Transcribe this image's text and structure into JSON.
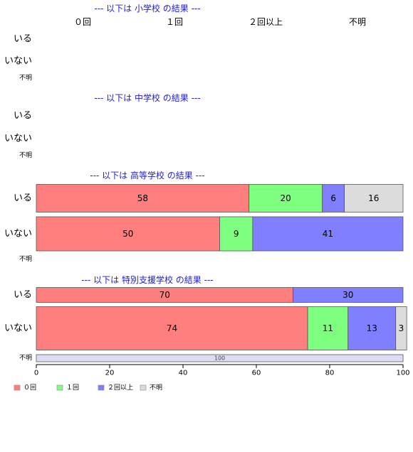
{
  "colors": {
    "zero": "#ff7f7f",
    "one": "#7fff7f",
    "twoplus": "#7f7fff",
    "unknown": "#dcdcdc",
    "unknown_row": "#dcdcf4",
    "title": "#2222cc",
    "text": "#000000",
    "border": "#555555"
  },
  "legend": {
    "items": [
      {
        "label": "０回",
        "color_key": "zero"
      },
      {
        "label": "１回",
        "color_key": "one"
      },
      {
        "label": "２回以上",
        "color_key": "twoplus"
      },
      {
        "label": "不明",
        "color_key": "unknown"
      }
    ]
  },
  "chart_data": {
    "type": "bar",
    "orientation": "horizontal",
    "stacked": true,
    "percent": true,
    "categories": [
      "０回",
      "１回",
      "２回以上",
      "不明"
    ],
    "xlim": [
      0,
      100
    ],
    "xticks": [
      "0",
      "20",
      "40",
      "60",
      "80",
      "100"
    ],
    "top_category_labels": [
      "０回",
      "１回",
      "２回以上",
      "不明"
    ],
    "panels": [
      {
        "title": "--- 以下は 小学校 の結果 ---",
        "rows": [
          {
            "label": "いる",
            "values": [
              0,
              0,
              0,
              0
            ]
          },
          {
            "label": "いない",
            "values": [
              0,
              0,
              0,
              0
            ]
          },
          {
            "label": "不明",
            "values": [
              0,
              0,
              0,
              0
            ]
          }
        ]
      },
      {
        "title": "--- 以下は 中学校 の結果 ---",
        "rows": [
          {
            "label": "いる",
            "values": [
              0,
              0,
              0,
              0
            ]
          },
          {
            "label": "いない",
            "values": [
              0,
              0,
              0,
              0
            ]
          },
          {
            "label": "不明",
            "values": [
              0,
              0,
              0,
              0
            ]
          }
        ]
      },
      {
        "title": "--- 以下は 高等学校 の結果 ---",
        "rows": [
          {
            "label": "いる",
            "values": [
              58,
              20,
              6,
              16
            ]
          },
          {
            "label": "いない",
            "values": [
              50,
              9,
              41,
              0
            ]
          },
          {
            "label": "不明",
            "values": [
              0,
              0,
              0,
              0
            ]
          }
        ]
      },
      {
        "title": "--- 以下は 特別支援学校 の結果 ---",
        "rows": [
          {
            "label": "いる",
            "values": [
              70,
              0,
              30,
              0
            ]
          },
          {
            "label": "いない",
            "values": [
              74,
              11,
              13,
              3
            ]
          },
          {
            "label": "不明",
            "values": [
              0,
              0,
              0,
              0
            ],
            "whole_bar_label": "100"
          }
        ]
      }
    ]
  }
}
